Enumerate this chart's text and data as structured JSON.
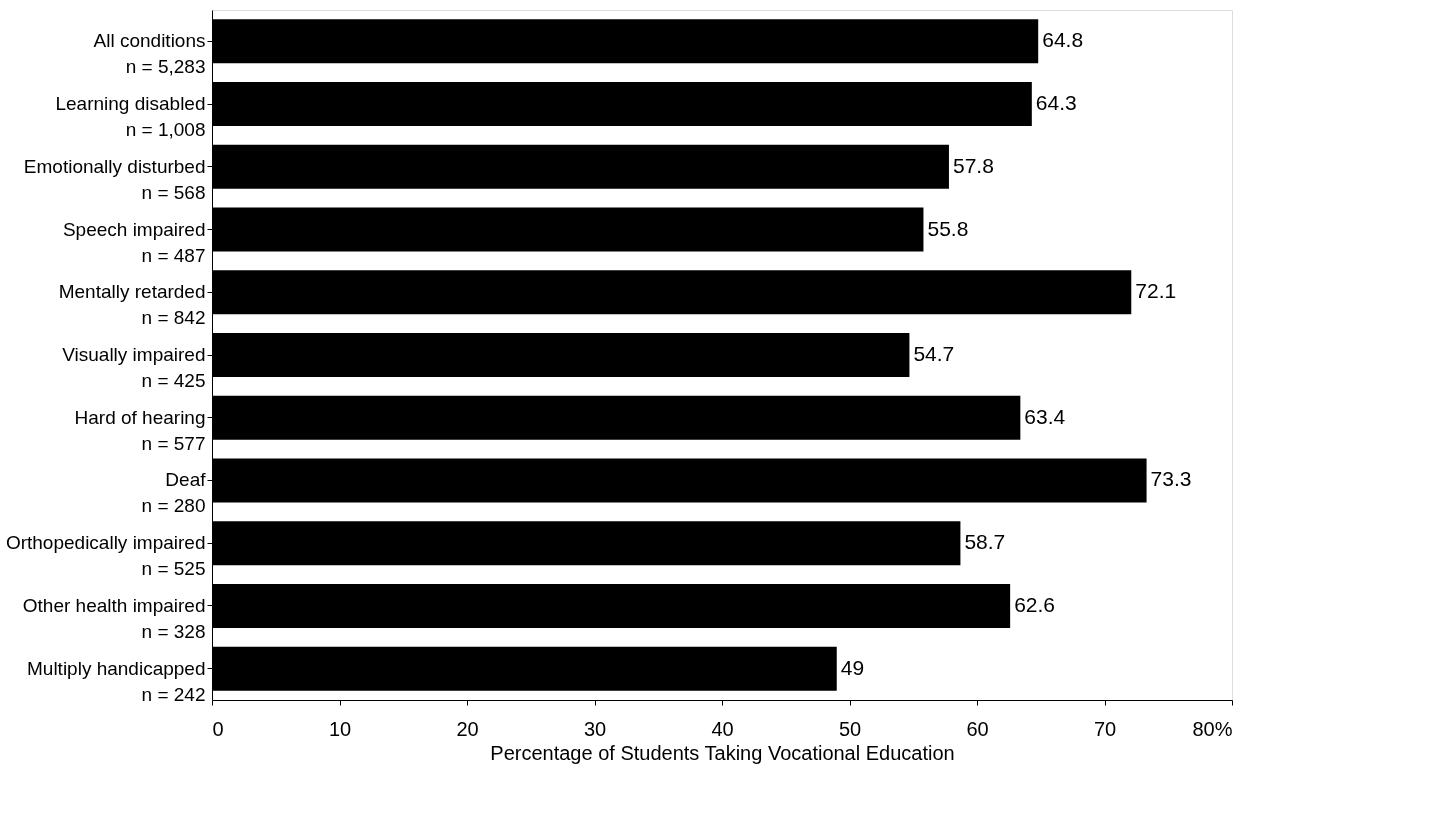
{
  "chart_data": {
    "type": "bar",
    "orientation": "horizontal",
    "xlabel": "Percentage of Students Taking Vocational Education",
    "categories": [
      "All conditions\nn = 5,283",
      "Learning disabled\nn = 1,008",
      "Emotionally disturbed\nn = 568",
      "Speech impaired\nn = 487",
      "Mentally retarded\nn = 842",
      "Visually impaired\nn = 425",
      "Hard of hearing\nn = 577",
      "Deaf\nn = 280",
      "Orthopedically impaired\nn = 525",
      "Other health impaired\nn = 328",
      "Multiply handicapped\nn = 242"
    ],
    "values": [
      64.8,
      64.3,
      57.8,
      55.8,
      72.1,
      54.7,
      63.4,
      73.3,
      58.7,
      62.6,
      49
    ],
    "color": "#000000",
    "data_labels": true,
    "grid": false,
    "xlim": [
      0,
      80
    ],
    "xticks": [
      0,
      10,
      20,
      30,
      40,
      50,
      60,
      70,
      {
        "value": 80,
        "label": "80%"
      }
    ]
  }
}
